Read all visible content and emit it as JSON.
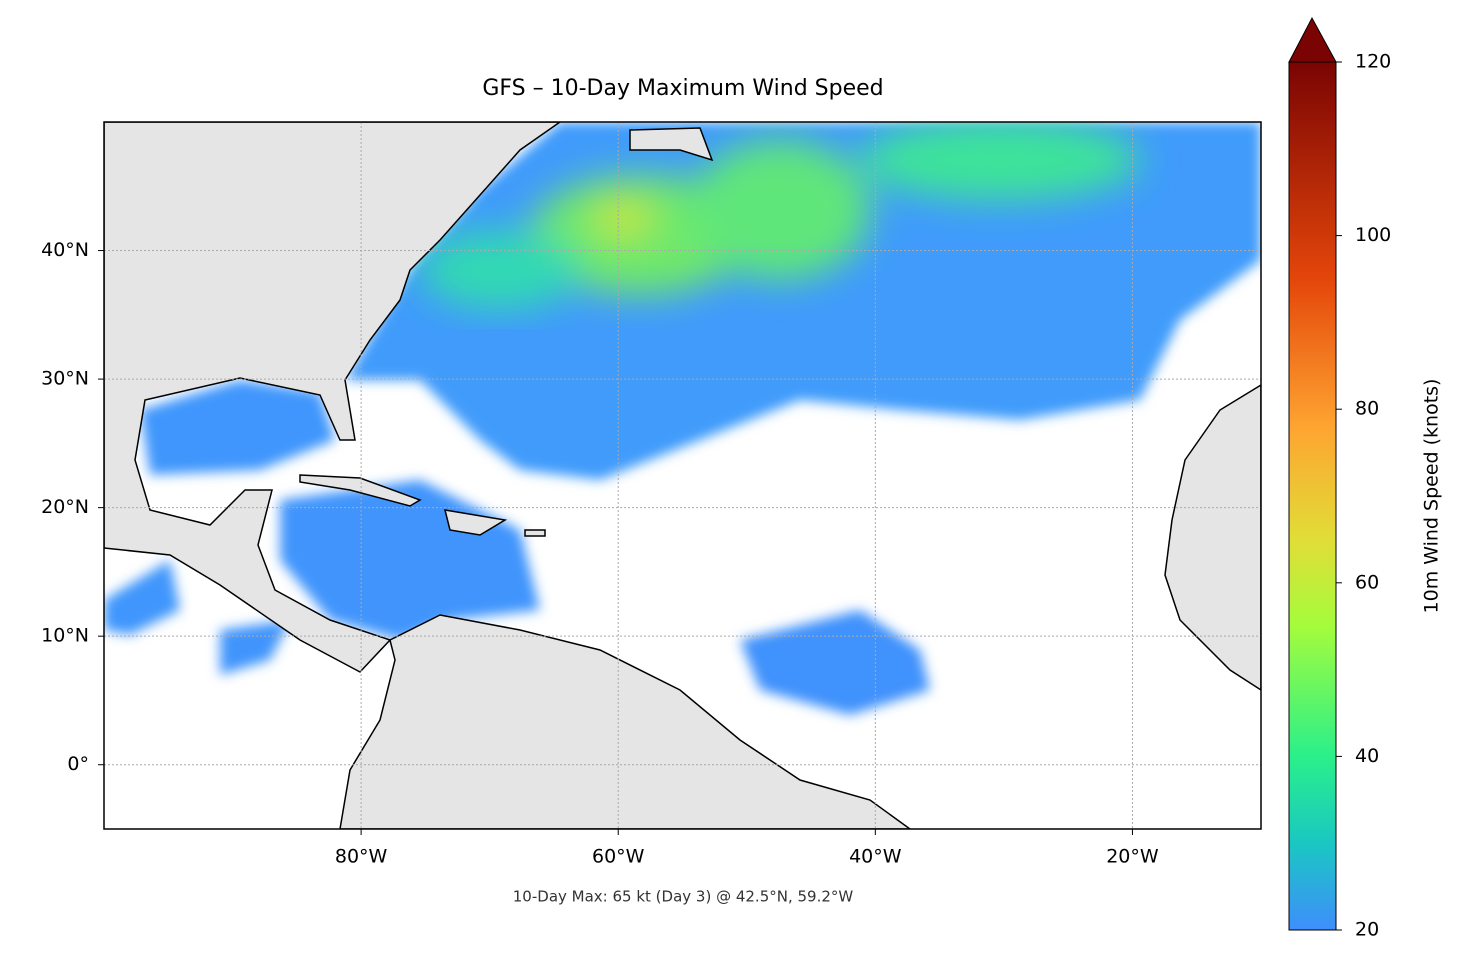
{
  "title": "GFS – 10-Day Maximum Wind Speed",
  "map": {
    "xlim": [
      -100,
      -10
    ],
    "ylim": [
      -5,
      50
    ],
    "xticks": [
      {
        "value": -80,
        "label": "80°W"
      },
      {
        "value": -60,
        "label": "60°W"
      },
      {
        "value": -40,
        "label": "40°W"
      },
      {
        "value": -20,
        "label": "20°W"
      }
    ],
    "yticks": [
      {
        "value": 0,
        "label": "0°"
      },
      {
        "value": 10,
        "label": "10°N"
      },
      {
        "value": 20,
        "label": "20°N"
      },
      {
        "value": 30,
        "label": "30°N"
      },
      {
        "value": 40,
        "label": "40°N"
      }
    ],
    "grid": true
  },
  "colorbar": {
    "label": "10m Wind Speed (knots)",
    "lim": [
      20,
      120
    ],
    "ticks": [
      20,
      40,
      60,
      80,
      100,
      120
    ]
  },
  "annotation": "10-Day Max: 65 kt (Day 3) @ 42.5°N, 59.2°W"
}
